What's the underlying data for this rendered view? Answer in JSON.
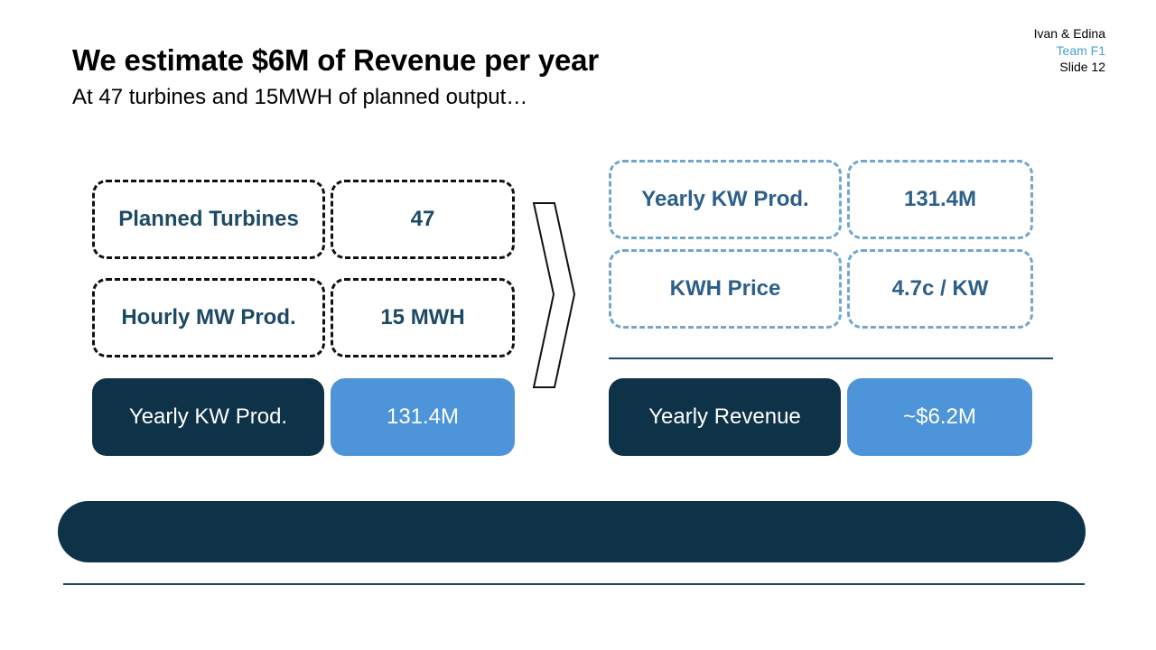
{
  "meta": {
    "authors": "Ivan & Edina",
    "team": "Team F1",
    "slide": "Slide 12"
  },
  "header": {
    "title": "We estimate $6M of Revenue per year",
    "subtitle": "At 47 turbines and 15MWH of planned output…"
  },
  "left": {
    "rows": [
      {
        "label": "Planned Turbines",
        "value": "47"
      },
      {
        "label": "Hourly MW Prod.",
        "value": "15 MWH"
      }
    ],
    "result": {
      "label": "Yearly KW Prod.",
      "value": "131.4M"
    }
  },
  "right": {
    "rows": [
      {
        "label": "Yearly KW Prod.",
        "value": "131.4M"
      },
      {
        "label": "KWH Price",
        "value": "4.7c / KW"
      }
    ],
    "result": {
      "label": "Yearly Revenue",
      "value": "~$6.2M"
    }
  },
  "colors": {
    "dark_navy": "#0e3247",
    "accent_blue": "#4d94d8",
    "dashed_blue": "#6fa7cf",
    "team_blue": "#4a9fd0"
  },
  "icons": {
    "arrow": "chevron-right-icon"
  }
}
